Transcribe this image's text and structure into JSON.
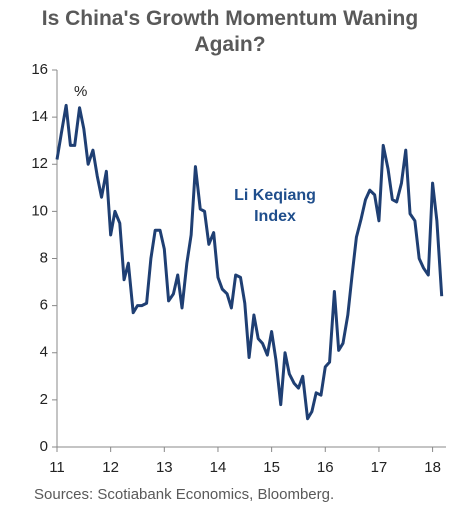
{
  "chart_data": {
    "type": "line",
    "title": "Is China's Growth Momentum Waning Again?",
    "y_unit_label": "%",
    "annotation": "Li Keqiang Index",
    "source": "Sources: Scotiabank Economics, Bloomberg.",
    "x": [
      11,
      11.08,
      11.17,
      11.25,
      11.33,
      11.42,
      11.5,
      11.58,
      11.67,
      11.75,
      11.83,
      11.92,
      12,
      12.08,
      12.17,
      12.25,
      12.33,
      12.42,
      12.5,
      12.58,
      12.67,
      12.75,
      12.83,
      12.92,
      13,
      13.08,
      13.17,
      13.25,
      13.33,
      13.42,
      13.5,
      13.58,
      13.67,
      13.75,
      13.83,
      13.92,
      14,
      14.08,
      14.17,
      14.25,
      14.33,
      14.42,
      14.5,
      14.58,
      14.67,
      14.75,
      14.83,
      14.92,
      15,
      15.08,
      15.17,
      15.25,
      15.33,
      15.42,
      15.5,
      15.58,
      15.67,
      15.75,
      15.83,
      15.92,
      16,
      16.08,
      16.17,
      16.25,
      16.33,
      16.42,
      16.5,
      16.58,
      16.67,
      16.75,
      16.83,
      16.92,
      17,
      17.08,
      17.17,
      17.25,
      17.33,
      17.42,
      17.5,
      17.58,
      17.67,
      17.75,
      17.83,
      17.92,
      18,
      18.08,
      18.17
    ],
    "series": [
      {
        "name": "Li Keqiang Index",
        "color": "#1f3f73",
        "values": [
          12.2,
          13.3,
          14.5,
          12.8,
          12.8,
          14.4,
          13.5,
          12.0,
          12.6,
          11.5,
          10.6,
          11.7,
          9.0,
          10.0,
          9.5,
          7.1,
          7.8,
          5.7,
          6.0,
          6.0,
          6.1,
          8.0,
          9.2,
          9.2,
          8.4,
          6.2,
          6.5,
          7.3,
          5.9,
          7.8,
          9.0,
          11.9,
          10.1,
          10.0,
          8.6,
          9.1,
          7.2,
          6.7,
          6.5,
          5.9,
          7.3,
          7.2,
          6.1,
          3.8,
          5.6,
          4.6,
          4.4,
          3.9,
          4.9,
          3.7,
          1.8,
          4.0,
          3.1,
          2.7,
          2.5,
          3.0,
          1.2,
          1.5,
          2.3,
          2.2,
          3.4,
          3.6,
          6.6,
          4.1,
          4.4,
          5.6,
          7.3,
          8.9,
          9.7,
          10.5,
          10.9,
          10.7,
          9.6,
          12.8,
          11.8,
          10.5,
          10.4,
          11.2,
          12.6,
          9.9,
          9.6,
          8.0,
          7.6,
          7.3,
          11.2,
          9.6,
          6.4
        ]
      }
    ],
    "xlim": [
      11,
      18.25
    ],
    "xticks": [
      11,
      12,
      13,
      14,
      15,
      16,
      17,
      18
    ],
    "ylim": [
      0,
      16
    ],
    "yticks": [
      0,
      2,
      4,
      6,
      8,
      10,
      12,
      14,
      16
    ],
    "grid": false
  }
}
